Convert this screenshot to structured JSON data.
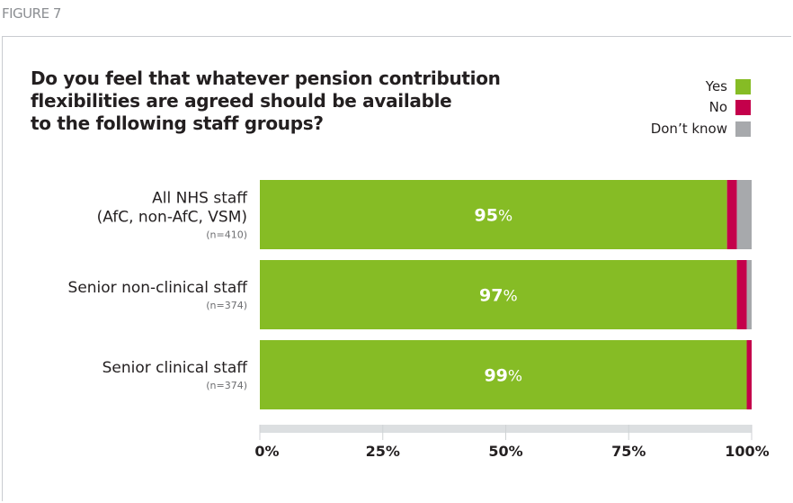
{
  "figure_label": "FIGURE 7",
  "chart_data": {
    "type": "bar",
    "orientation": "horizontal",
    "stacked": true,
    "title_lines": [
      "Do you feel that whatever pension contribution",
      "flexibilities are agreed should be available",
      "to the following staff groups?"
    ],
    "categories": [
      {
        "label_lines": [
          "All NHS staff",
          "(AfC, non-AfC, VSM)"
        ],
        "n": "(n=410)",
        "value_label": "95",
        "value_suffix": "%"
      },
      {
        "label_lines": [
          "Senior non-clinical staff"
        ],
        "n": "(n=374)",
        "value_label": "97",
        "value_suffix": "%"
      },
      {
        "label_lines": [
          "Senior clinical staff"
        ],
        "n": "(n=374)",
        "value_label": "99",
        "value_suffix": "%"
      }
    ],
    "series": [
      {
        "name": "Yes",
        "color": "#86bc25",
        "values": [
          95,
          97,
          99
        ]
      },
      {
        "name": "No",
        "color": "#c4004b",
        "values": [
          2,
          2,
          1
        ]
      },
      {
        "name": "Don’t know",
        "color": "#a7a9ac",
        "values": [
          3,
          1,
          0
        ]
      }
    ],
    "xlim": [
      0,
      100
    ],
    "x_ticks": [
      "0%",
      "25%",
      "50%",
      "75%",
      "100%"
    ],
    "legend_position": "top-right"
  }
}
